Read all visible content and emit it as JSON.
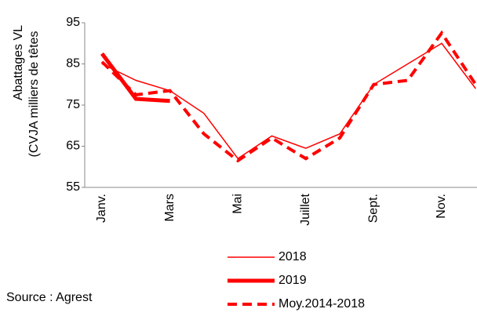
{
  "chart_data": {
    "type": "line",
    "y_label": [
      "Abattages VL",
      "(CVJA milliers de têtes"
    ],
    "source": "Source : Agrest",
    "categories": [
      "Janv.",
      null,
      "Mars",
      null,
      "Mai",
      null,
      "Juillet",
      null,
      "Sept.",
      null,
      "Nov.",
      null
    ],
    "series": [
      {
        "name": "2018",
        "color": "#ff0000",
        "style": "thin",
        "values": [
          85,
          81,
          78.5,
          73,
          62,
          67.5,
          64.5,
          68,
          80,
          85,
          90,
          79
        ]
      },
      {
        "name": "2019",
        "color": "#ff0000",
        "style": "thick",
        "values": [
          87.5,
          76.5,
          76,
          null,
          null,
          null,
          null,
          null,
          null,
          null,
          null,
          null
        ]
      },
      {
        "name": "Moy.2014-2018",
        "color": "#ff0000",
        "style": "dashed",
        "values": [
          85.5,
          77.5,
          78.5,
          68,
          61.5,
          67,
          62,
          67,
          80,
          81,
          92.5,
          80
        ]
      }
    ],
    "ylim": [
      55,
      95
    ],
    "yticks": [
      55,
      65,
      75,
      85,
      95
    ]
  }
}
